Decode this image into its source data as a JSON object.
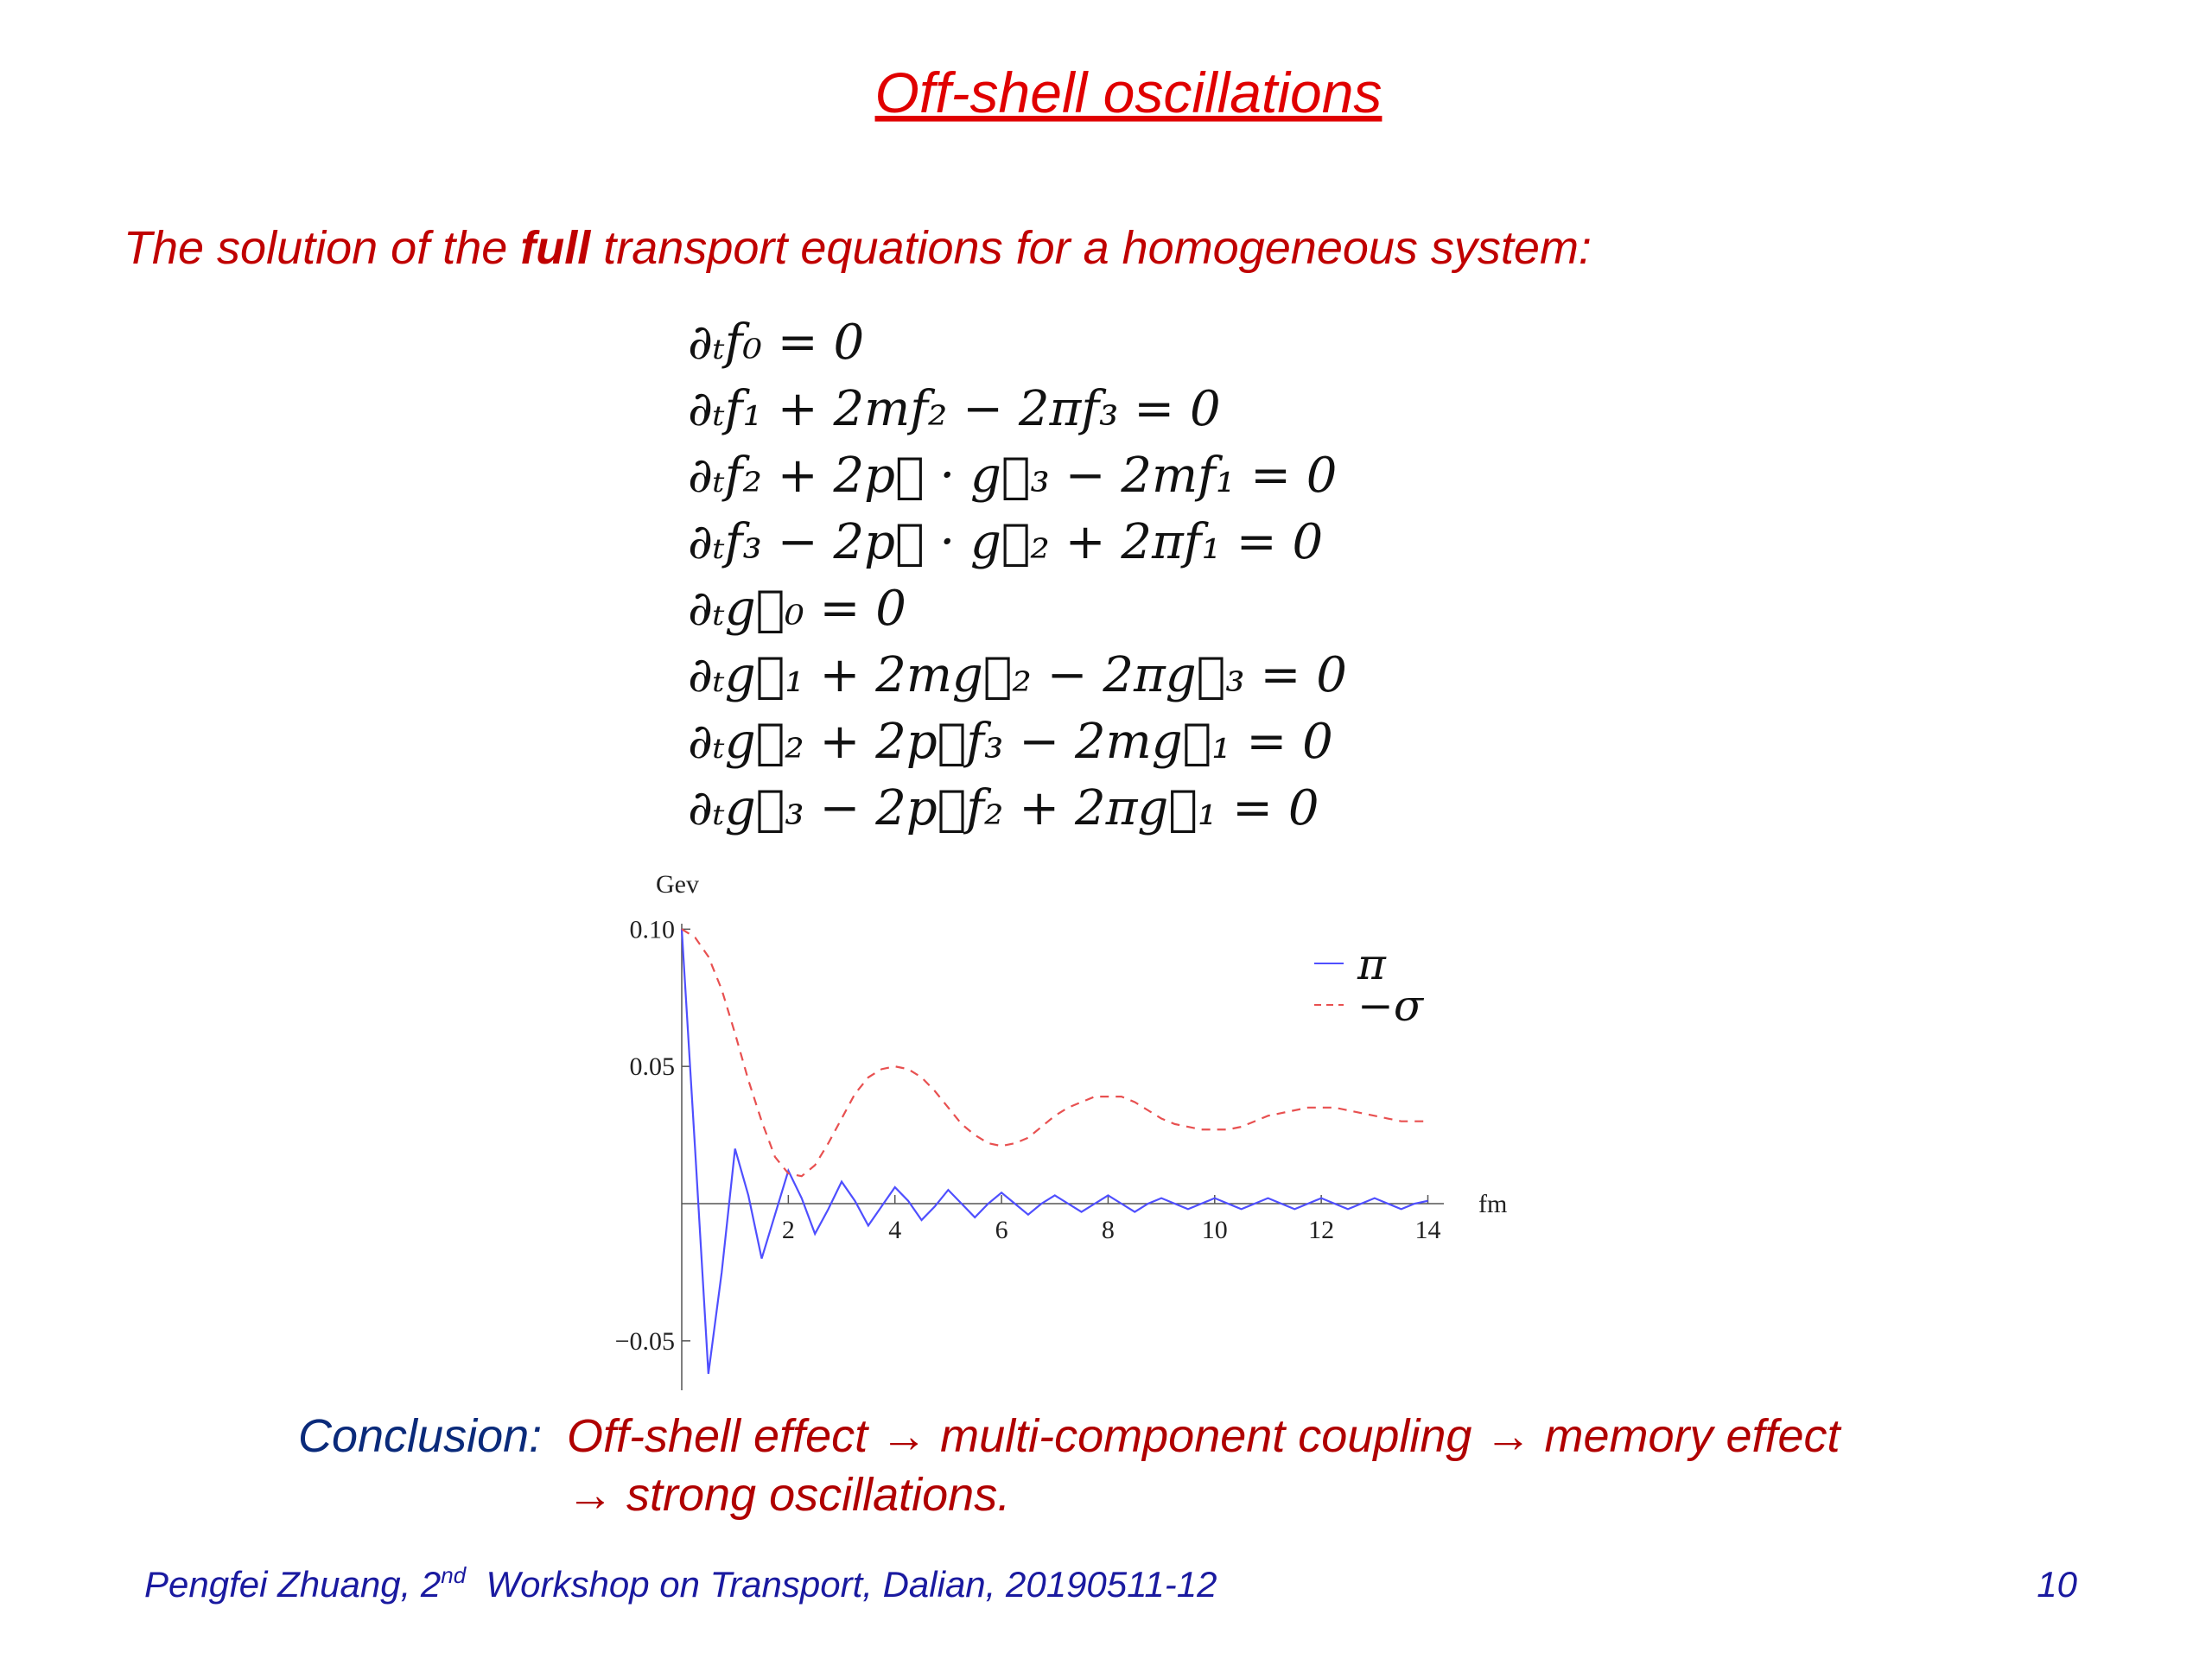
{
  "header": {
    "title": "Off-shell oscillations"
  },
  "intro": {
    "before": "The solution of the ",
    "bold": "full",
    "after": " transport equations for a homogeneous system:"
  },
  "equations": [
    "∂ₜf₀ = 0",
    "∂ₜf₁ + 2mf₂ − 2πf₃ = 0",
    "∂ₜf₂ + 2p⃗ · g⃗₃ − 2mf₁ = 0",
    "∂ₜf₃ − 2p⃗ · g⃗₂ + 2πf₁ = 0",
    "∂ₜg⃗₀ = 0",
    "∂ₜg⃗₁ + 2mg⃗₂ − 2πg⃗₃ = 0",
    "∂ₜg⃗₂ + 2p⃗f₃ − 2mg⃗₁ = 0",
    "∂ₜg⃗₃ − 2p⃗f₂ + 2πg⃗₁ = 0"
  ],
  "chart_data": {
    "type": "line",
    "x_label": "fm",
    "y_label": "Gev",
    "x": [
      0,
      0.25,
      0.5,
      0.75,
      1,
      1.25,
      1.5,
      1.75,
      2,
      2.25,
      2.5,
      2.75,
      3,
      3.25,
      3.5,
      3.75,
      4,
      4.25,
      4.5,
      4.75,
      5,
      5.25,
      5.5,
      5.75,
      6,
      6.25,
      6.5,
      6.75,
      7,
      7.25,
      7.5,
      7.75,
      8,
      8.25,
      8.5,
      8.75,
      9,
      9.25,
      9.5,
      9.75,
      10,
      10.25,
      10.5,
      10.75,
      11,
      11.25,
      11.5,
      11.75,
      12,
      12.25,
      12.5,
      12.75,
      13,
      13.25,
      13.5,
      13.75,
      14
    ],
    "series": [
      {
        "name": "π",
        "color": "#4f4fff",
        "style": "solid",
        "values": [
          0.1,
          0.02,
          -0.062,
          -0.025,
          0.02,
          0.003,
          -0.02,
          -0.004,
          0.012,
          0.002,
          -0.011,
          -0.002,
          0.008,
          0.001,
          -0.008,
          -0.001,
          0.006,
          0.001,
          -0.006,
          -0.001,
          0.005,
          0,
          -0.005,
          0,
          0.004,
          0,
          -0.004,
          0,
          0.003,
          0,
          -0.003,
          0,
          0.003,
          0,
          -0.003,
          0,
          0.002,
          0,
          -0.002,
          0,
          0.002,
          0,
          -0.002,
          0,
          0.002,
          0,
          -0.002,
          0,
          0.002,
          0,
          -0.002,
          0,
          0.002,
          0,
          -0.002,
          0,
          0.001
        ]
      },
      {
        "name": "−σ",
        "color": "#e85050",
        "style": "dashed",
        "values": [
          0.1,
          0.097,
          0.09,
          0.078,
          0.062,
          0.045,
          0.03,
          0.017,
          0.011,
          0.01,
          0.014,
          0.022,
          0.031,
          0.04,
          0.046,
          0.049,
          0.05,
          0.049,
          0.046,
          0.041,
          0.035,
          0.029,
          0.025,
          0.022,
          0.021,
          0.022,
          0.024,
          0.028,
          0.032,
          0.035,
          0.037,
          0.039,
          0.039,
          0.039,
          0.037,
          0.034,
          0.031,
          0.029,
          0.028,
          0.027,
          0.027,
          0.027,
          0.028,
          0.03,
          0.032,
          0.033,
          0.034,
          0.035,
          0.035,
          0.035,
          0.034,
          0.033,
          0.032,
          0.031,
          0.03,
          0.03,
          0.03
        ]
      }
    ],
    "xlim": [
      0,
      14.3
    ],
    "ylim": [
      -0.068,
      0.102
    ],
    "xticks": [
      2,
      4,
      6,
      8,
      10,
      12,
      14
    ],
    "yticks": [
      {
        "value": -0.05,
        "label": "−0.05"
      },
      0.05,
      {
        "value": 0.1,
        "label": "0.10"
      }
    ],
    "grid": false,
    "legend": "upper right"
  },
  "conclusion": {
    "label": "Conclusion:",
    "line1": "Off-shell effect → multi-component coupling → memory effect",
    "line2": "→ strong oscillations."
  },
  "footer": {
    "author": "Pengfei Zhuang, 2",
    "sup": "nd",
    "event": "  Workshop on Transport, Dalian, 20190511-12",
    "page": "10"
  }
}
